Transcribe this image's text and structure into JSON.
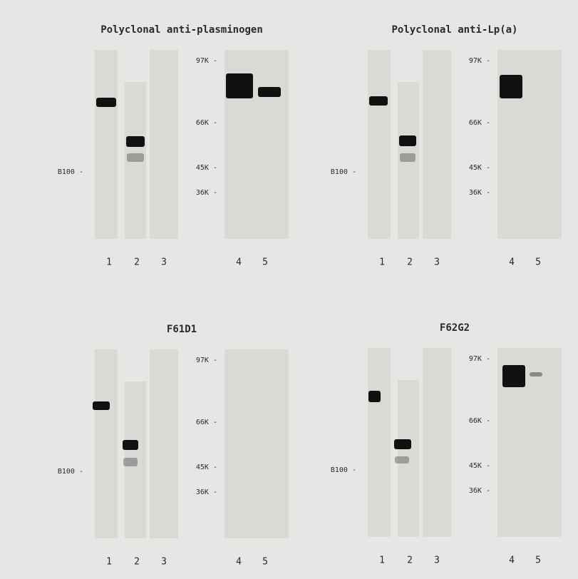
{
  "panels": [
    {
      "title": "Polyclonal anti-plasminogen",
      "marker": "B100 -",
      "mw_labels": [
        "97K -",
        "66K -",
        "45K -",
        "36K -"
      ],
      "lanes": [
        "1",
        "2",
        "3",
        "4",
        "5"
      ]
    },
    {
      "title": "Polyclonal anti-Lp(a)",
      "marker": "B100 -",
      "mw_labels": [
        "97K -",
        "66K -",
        "45K -",
        "36K -"
      ],
      "lanes": [
        "1",
        "2",
        "3",
        "4",
        "5"
      ]
    },
    {
      "title": "F61D1",
      "marker": "B100 -",
      "mw_labels": [
        "97K -",
        "66K -",
        "45K -",
        "36K -"
      ],
      "lanes": [
        "1",
        "2",
        "3",
        "4",
        "5"
      ]
    },
    {
      "title": "F62G2",
      "marker": "B100 -",
      "mw_labels": [
        "97K -",
        "66K -",
        "45K -",
        "36K -"
      ],
      "lanes": [
        "1",
        "2",
        "3",
        "4",
        "5"
      ]
    }
  ]
}
